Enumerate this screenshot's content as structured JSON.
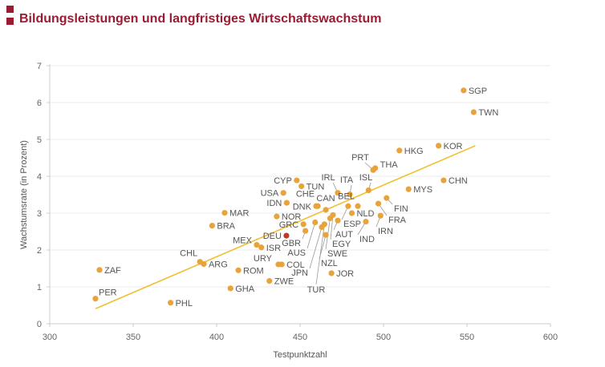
{
  "header": {
    "title": "Bildungsleistungen und langfristiges Wirtschaftswachstum"
  },
  "chart_data": {
    "type": "scatter",
    "title": "Bildungsleistungen und langfristiges Wirtschaftswachstum",
    "xlabel": "Testpunktzahl",
    "ylabel": "Wachstumsrate (in Prozent)",
    "xlim": [
      300,
      600
    ],
    "ylim": [
      0,
      7
    ],
    "xticks": [
      "300",
      "350",
      "400",
      "450",
      "500",
      "550",
      "600"
    ],
    "yticks": [
      "0",
      "1",
      "2",
      "3",
      "4",
      "5",
      "6",
      "7"
    ],
    "grid": "horizontal",
    "colors": {
      "point": "#e8a33a",
      "highlight": "#c0392b",
      "trend": "#f0c030",
      "title": "#9b1b32"
    },
    "trendline": {
      "x": [
        327.5,
        555
      ],
      "y": [
        0.41,
        4.83
      ]
    },
    "points": [
      {
        "label": "SGP",
        "x": 548,
        "y": 6.33
      },
      {
        "label": "TWN",
        "x": 554,
        "y": 5.74
      },
      {
        "label": "KOR",
        "x": 533,
        "y": 4.83
      },
      {
        "label": "CHN",
        "x": 536,
        "y": 3.89
      },
      {
        "label": "HKG",
        "x": 509.5,
        "y": 4.7
      },
      {
        "label": "PRT",
        "x": 493.8,
        "y": 4.17
      },
      {
        "label": "THA",
        "x": 495,
        "y": 4.22
      },
      {
        "label": "ISL",
        "x": 491,
        "y": 3.62
      },
      {
        "label": "MYS",
        "x": 515,
        "y": 3.65
      },
      {
        "label": "FIN",
        "x": 501.8,
        "y": 3.41
      },
      {
        "label": "FRA",
        "x": 496.9,
        "y": 3.26
      },
      {
        "label": "BEL",
        "x": 484.6,
        "y": 3.19
      },
      {
        "label": "ESP",
        "x": 478.8,
        "y": 3.19
      },
      {
        "label": "NLD",
        "x": 481,
        "y": 3.0
      },
      {
        "label": "IRN",
        "x": 498.2,
        "y": 2.93
      },
      {
        "label": "IND",
        "x": 489.4,
        "y": 2.77
      },
      {
        "label": "ITA",
        "x": 479.8,
        "y": 3.51
      },
      {
        "label": "IRL",
        "x": 472.6,
        "y": 3.55
      },
      {
        "label": "CYP",
        "x": 448,
        "y": 3.89
      },
      {
        "label": "TUN",
        "x": 450.8,
        "y": 3.73
      },
      {
        "label": "USA",
        "x": 440,
        "y": 3.55
      },
      {
        "label": "IDN",
        "x": 442,
        "y": 3.28
      },
      {
        "label": "CHE",
        "x": 460.6,
        "y": 3.19
      },
      {
        "label": "DNK",
        "x": 459.6,
        "y": 3.19
      },
      {
        "label": "CAN",
        "x": 465.4,
        "y": 3.09
      },
      {
        "label": "NOR",
        "x": 436,
        "y": 2.91
      },
      {
        "label": "GRC",
        "x": 452,
        "y": 2.7
      },
      {
        "label": "DEU",
        "x": 441.8,
        "y": 2.39,
        "highlight": true
      },
      {
        "label": "GBR",
        "x": 453.2,
        "y": 2.52
      },
      {
        "label": "AUS",
        "x": 459,
        "y": 2.75
      },
      {
        "label": "JPN",
        "x": 463,
        "y": 2.62
      },
      {
        "label": "TUR",
        "x": 464.6,
        "y": 2.7
      },
      {
        "label": "NZL",
        "x": 465.4,
        "y": 2.41
      },
      {
        "label": "SWE",
        "x": 468,
        "y": 2.86
      },
      {
        "label": "EGY",
        "x": 469.7,
        "y": 2.95
      },
      {
        "label": "AUT",
        "x": 472.6,
        "y": 2.8
      },
      {
        "label": "JOR",
        "x": 468.8,
        "y": 1.37
      },
      {
        "label": "MEX",
        "x": 424,
        "y": 2.14
      },
      {
        "label": "ISR",
        "x": 426.8,
        "y": 2.07
      },
      {
        "label": "URY",
        "x": 437,
        "y": 1.61
      },
      {
        "label": "COL",
        "x": 439,
        "y": 1.61
      },
      {
        "label": "ZWE",
        "x": 431.6,
        "y": 1.16
      },
      {
        "label": "MAR",
        "x": 404.8,
        "y": 3.01
      },
      {
        "label": "BRA",
        "x": 397.3,
        "y": 2.66
      },
      {
        "label": "CHL",
        "x": 390,
        "y": 1.68
      },
      {
        "label": "ARG",
        "x": 392.3,
        "y": 1.62
      },
      {
        "label": "ROM",
        "x": 413,
        "y": 1.45
      },
      {
        "label": "GHA",
        "x": 408.3,
        "y": 0.96
      },
      {
        "label": "ZAF",
        "x": 329.8,
        "y": 1.46
      },
      {
        "label": "PER",
        "x": 327.4,
        "y": 0.68
      },
      {
        "label": "PHL",
        "x": 372.4,
        "y": 0.57
      }
    ]
  }
}
